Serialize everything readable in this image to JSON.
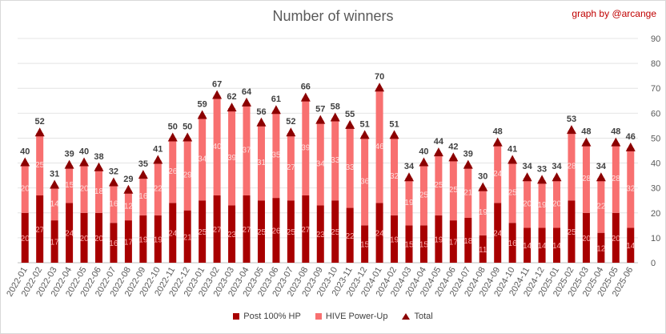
{
  "header": {
    "title": "Number of winners",
    "credit": "graph by @arcange"
  },
  "chart_data": {
    "type": "bar",
    "stacked": true,
    "title": "Number of winners",
    "categories": [
      "2022-01",
      "2022-02",
      "2022-03",
      "2022-04",
      "2022-05",
      "2022-06",
      "2022-07",
      "2022-08",
      "2022-09",
      "2022-10",
      "2022-11",
      "2022-12",
      "2023-01",
      "2023-02",
      "2023-03",
      "2023-04",
      "2023-05",
      "2023-06",
      "2023-07",
      "2023-08",
      "2023-09",
      "2023-10",
      "2023-11",
      "2023-12",
      "2024-01",
      "2024-02",
      "2024-03",
      "2024-04",
      "2024-05",
      "2024-06",
      "2024-07",
      "2024-08",
      "2024-09",
      "2024-10",
      "2024-11",
      "2024-12",
      "2025-01",
      "2025-02",
      "2025-03",
      "2025-04",
      "2025-05",
      "2025-06"
    ],
    "series": [
      {
        "name": "Post 100% HP",
        "color": "#a80000",
        "values": [
          20,
          27,
          17,
          24,
          20,
          20,
          16,
          17,
          19,
          19,
          24,
          21,
          25,
          27,
          23,
          27,
          25,
          26,
          25,
          27,
          23,
          25,
          22,
          15,
          24,
          19,
          15,
          15,
          19,
          17,
          18,
          11,
          24,
          16,
          14,
          14,
          14,
          25,
          20,
          12,
          20,
          14
        ]
      },
      {
        "name": "HIVE Power-Up",
        "color": "#f87070",
        "values": [
          20,
          25,
          14,
          15,
          20,
          18,
          16,
          12,
          16,
          22,
          26,
          29,
          34,
          40,
          39,
          37,
          31,
          35,
          27,
          39,
          34,
          33,
          33,
          36,
          46,
          32,
          19,
          25,
          25,
          25,
          21,
          19,
          24,
          25,
          20,
          19,
          20,
          28,
          28,
          22,
          28,
          32
        ]
      },
      {
        "name": "Total",
        "color": "#8b0000",
        "marker": "triangle",
        "values": [
          40,
          52,
          31,
          39,
          40,
          38,
          32,
          29,
          35,
          41,
          50,
          50,
          59,
          67,
          62,
          64,
          56,
          61,
          52,
          66,
          57,
          58,
          55,
          51,
          70,
          51,
          34,
          40,
          44,
          42,
          39,
          30,
          48,
          41,
          34,
          33,
          34,
          53,
          48,
          34,
          48,
          46
        ]
      }
    ],
    "ylim": [
      0,
      90
    ],
    "yticks": [
      0,
      10,
      20,
      30,
      40,
      50,
      60,
      70,
      80,
      90
    ],
    "y_axis_side": "right",
    "grid": true,
    "legend": "bottom"
  }
}
